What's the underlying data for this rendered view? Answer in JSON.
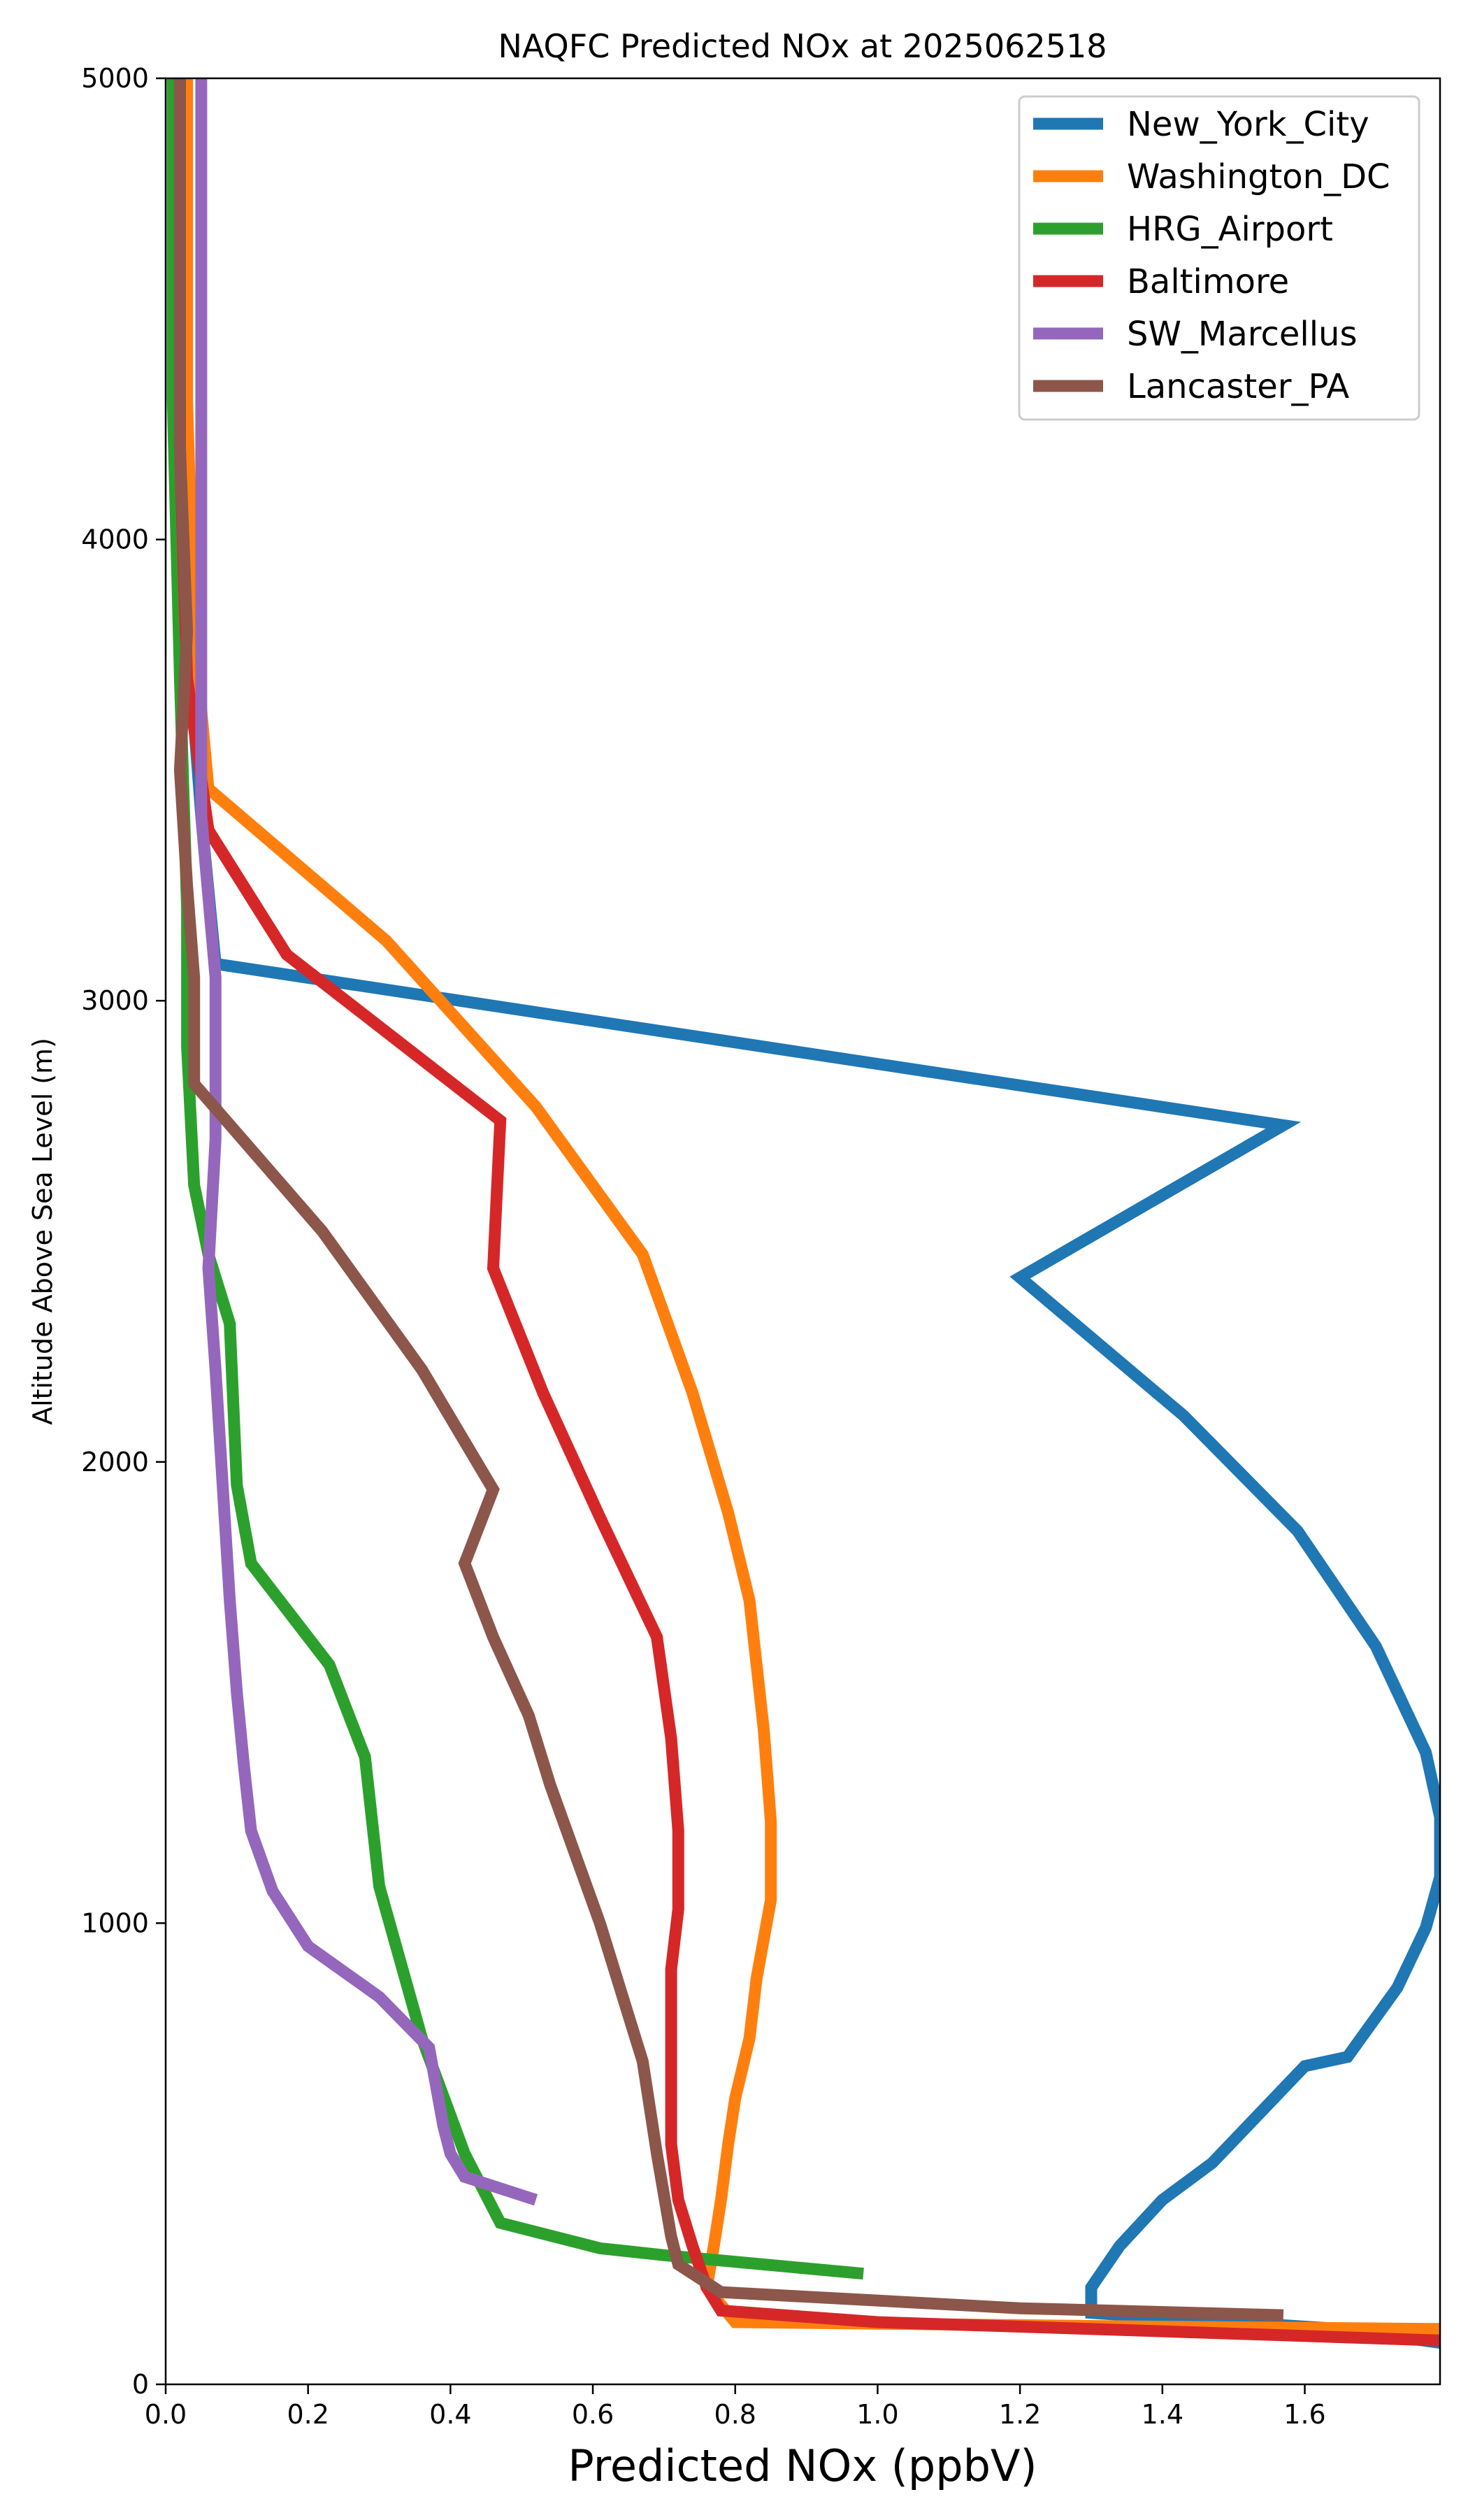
{
  "chart_data": {
    "type": "line",
    "title": "NAQFC Predicted NOx at 2025062518",
    "xlabel": "Predicted NOx (ppbV)",
    "ylabel": "Altitude Above Sea Level (m)",
    "xlim": [
      0,
      1.79
    ],
    "ylim": [
      0,
      5000
    ],
    "grid": false,
    "legend_position": "top-right",
    "xticks": [
      "0.0",
      "0.2",
      "0.4",
      "0.6",
      "0.8",
      "1.0",
      "1.2",
      "1.4",
      "1.6"
    ],
    "yticks": [
      "0",
      "1000",
      "2000",
      "3000",
      "4000",
      "5000"
    ],
    "series": [
      {
        "name": "New_York_City",
        "color": "#1f77b4",
        "points": [
          [
            1.79,
            90
          ],
          [
            1.65,
            120
          ],
          [
            1.3,
            155
          ],
          [
            1.3,
            210
          ],
          [
            1.34,
            300
          ],
          [
            1.4,
            400
          ],
          [
            1.47,
            480
          ],
          [
            1.6,
            690
          ],
          [
            1.66,
            710
          ],
          [
            1.73,
            860
          ],
          [
            1.77,
            990
          ],
          [
            1.79,
            1100
          ],
          [
            1.79,
            1230
          ],
          [
            1.77,
            1370
          ],
          [
            1.7,
            1600
          ],
          [
            1.59,
            1850
          ],
          [
            1.43,
            2100
          ],
          [
            1.2,
            2400
          ],
          [
            1.57,
            2730
          ],
          [
            0.07,
            3080
          ],
          [
            0.05,
            3400
          ],
          [
            0.03,
            3800
          ],
          [
            0.02,
            4300
          ],
          [
            0.01,
            5000
          ]
        ]
      },
      {
        "name": "Washington_DC",
        "color": "#ff7f0e",
        "points": [
          [
            1.79,
            120
          ],
          [
            1.4,
            125
          ],
          [
            0.8,
            135
          ],
          [
            0.76,
            210
          ],
          [
            0.77,
            300
          ],
          [
            0.78,
            400
          ],
          [
            0.79,
            520
          ],
          [
            0.8,
            620
          ],
          [
            0.82,
            750
          ],
          [
            0.83,
            880
          ],
          [
            0.85,
            1050
          ],
          [
            0.85,
            1220
          ],
          [
            0.84,
            1420
          ],
          [
            0.82,
            1700
          ],
          [
            0.79,
            1890
          ],
          [
            0.74,
            2150
          ],
          [
            0.67,
            2450
          ],
          [
            0.52,
            2770
          ],
          [
            0.31,
            3130
          ],
          [
            0.06,
            3460
          ],
          [
            0.04,
            3800
          ],
          [
            0.03,
            4300
          ],
          [
            0.03,
            5000
          ]
        ]
      },
      {
        "name": "HRG_Airport",
        "color": "#2ca02c",
        "points": [
          [
            0.98,
            240
          ],
          [
            0.7,
            280
          ],
          [
            0.61,
            295
          ],
          [
            0.47,
            350
          ],
          [
            0.42,
            500
          ],
          [
            0.36,
            750
          ],
          [
            0.3,
            1080
          ],
          [
            0.28,
            1360
          ],
          [
            0.23,
            1560
          ],
          [
            0.12,
            1780
          ],
          [
            0.1,
            1950
          ],
          [
            0.09,
            2300
          ],
          [
            0.06,
            2450
          ],
          [
            0.04,
            2600
          ],
          [
            0.03,
            2900
          ],
          [
            0.03,
            3200
          ],
          [
            0.02,
            3700
          ],
          [
            0.01,
            4300
          ],
          [
            0.01,
            5000
          ]
        ]
      },
      {
        "name": "Baltimore",
        "color": "#d62728",
        "points": [
          [
            1.79,
            95
          ],
          [
            1.4,
            115
          ],
          [
            1.0,
            135
          ],
          [
            0.78,
            160
          ],
          [
            0.76,
            210
          ],
          [
            0.74,
            300
          ],
          [
            0.72,
            400
          ],
          [
            0.71,
            520
          ],
          [
            0.71,
            720
          ],
          [
            0.71,
            900
          ],
          [
            0.72,
            1030
          ],
          [
            0.72,
            1200
          ],
          [
            0.71,
            1400
          ],
          [
            0.69,
            1620
          ],
          [
            0.61,
            1880
          ],
          [
            0.53,
            2150
          ],
          [
            0.46,
            2420
          ],
          [
            0.47,
            2740
          ],
          [
            0.17,
            3100
          ],
          [
            0.06,
            3370
          ],
          [
            0.03,
            3700
          ],
          [
            0.02,
            4200
          ],
          [
            0.02,
            5000
          ]
        ]
      },
      {
        "name": "SW_Marcellus",
        "color": "#9467bd",
        "points": [
          [
            0.52,
            400
          ],
          [
            0.42,
            450
          ],
          [
            0.4,
            500
          ],
          [
            0.39,
            560
          ],
          [
            0.37,
            730
          ],
          [
            0.3,
            840
          ],
          [
            0.2,
            950
          ],
          [
            0.15,
            1070
          ],
          [
            0.12,
            1200
          ],
          [
            0.11,
            1340
          ],
          [
            0.1,
            1500
          ],
          [
            0.09,
            1700
          ],
          [
            0.08,
            1950
          ],
          [
            0.07,
            2200
          ],
          [
            0.06,
            2420
          ],
          [
            0.07,
            2700
          ],
          [
            0.07,
            3050
          ],
          [
            0.05,
            3400
          ],
          [
            0.05,
            3800
          ],
          [
            0.05,
            4300
          ],
          [
            0.05,
            5000
          ]
        ]
      },
      {
        "name": "Lancaster_PA",
        "color": "#8c564b",
        "points": [
          [
            1.57,
            150
          ],
          [
            1.2,
            165
          ],
          [
            0.78,
            200
          ],
          [
            0.72,
            260
          ],
          [
            0.71,
            320
          ],
          [
            0.69,
            500
          ],
          [
            0.67,
            700
          ],
          [
            0.61,
            1000
          ],
          [
            0.54,
            1300
          ],
          [
            0.51,
            1450
          ],
          [
            0.46,
            1620
          ],
          [
            0.42,
            1780
          ],
          [
            0.46,
            1940
          ],
          [
            0.36,
            2200
          ],
          [
            0.22,
            2500
          ],
          [
            0.04,
            2820
          ],
          [
            0.04,
            3050
          ],
          [
            0.03,
            3250
          ],
          [
            0.02,
            3500
          ],
          [
            0.03,
            3800
          ],
          [
            0.02,
            4200
          ],
          [
            0.02,
            5000
          ]
        ]
      }
    ]
  }
}
